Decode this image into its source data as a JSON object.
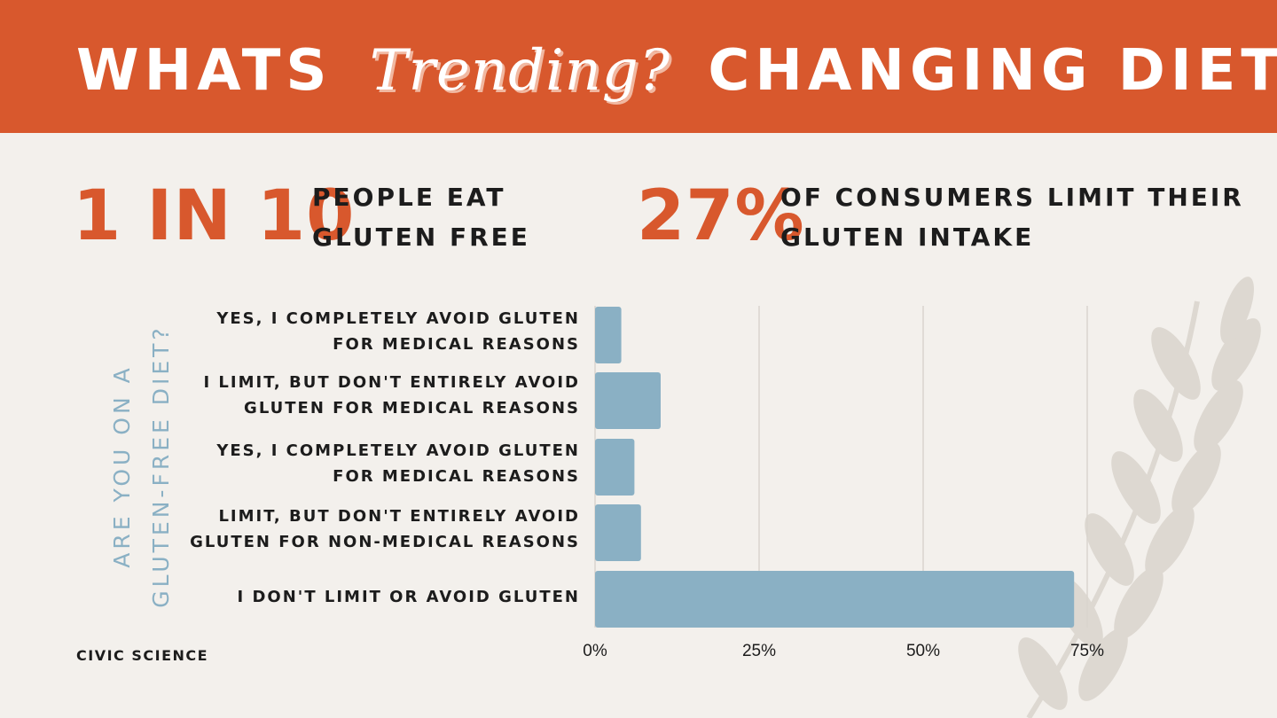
{
  "banner": {
    "part1": "WHATS",
    "script": "Trending?",
    "part2": "CHANGING DIETS"
  },
  "stats": [
    {
      "value": "1 IN 10",
      "line1": "PEOPLE EAT",
      "line2": "GLUTEN FREE"
    },
    {
      "value": "27%",
      "line1": "OF CONSUMERS LIMIT THEIR",
      "line2": "GLUTEN INTAKE"
    }
  ],
  "source": "CIVIC SCIENCE",
  "chart_data": {
    "type": "bar",
    "orientation": "horizontal",
    "ylabel_lines": [
      "ARE YOU ON A",
      "GLUTEN-FREE DIET?"
    ],
    "categories": [
      [
        "YES, I COMPLETELY AVOID GLUTEN",
        "FOR MEDICAL REASONS"
      ],
      [
        "I LIMIT, BUT DON'T ENTIRELY AVOID",
        "GLUTEN FOR MEDICAL REASONS"
      ],
      [
        "YES, I COMPLETELY AVOID GLUTEN",
        "FOR MEDICAL REASONS"
      ],
      [
        "LIMIT, BUT DON'T ENTIRELY AVOID",
        "GLUTEN FOR NON-MEDICAL REASONS"
      ],
      [
        "I DON'T LIMIT OR AVOID GLUTEN"
      ]
    ],
    "values": [
      4,
      10,
      6,
      7,
      73
    ],
    "xlim": [
      0,
      75
    ],
    "xticks": [
      0,
      25,
      50,
      75
    ],
    "xtick_labels": [
      "0%",
      "25%",
      "50%",
      "75%"
    ],
    "grid": true,
    "bar_color": "#8ab0c4",
    "grid_color": "#d9d4ce"
  },
  "colors": {
    "accent": "#d8582d",
    "bar": "#8ab0c4",
    "background": "#f3f0ec",
    "text": "#1c1c1c"
  }
}
